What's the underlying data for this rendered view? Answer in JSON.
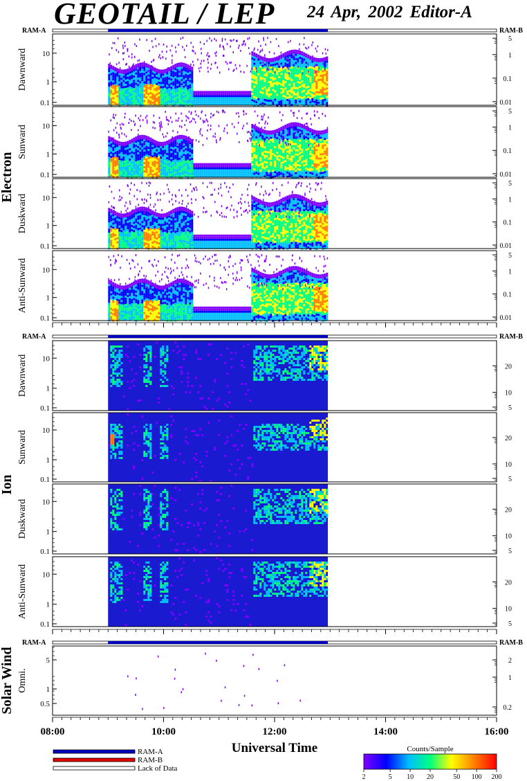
{
  "header": {
    "title": "GEOTAIL / LEP",
    "date": "24 Apr, 2002",
    "editor": "Editor-A"
  },
  "colors": {
    "ram_a": "#0000c0",
    "ram_b": "#e00000",
    "lack_of_data": "#ffffff",
    "colorscale": [
      "#7f00ff",
      "#0000ff",
      "#00bfff",
      "#00ff80",
      "#ffff00",
      "#ff8000",
      "#ff0000"
    ]
  },
  "chart_data": {
    "type": "heatmap",
    "xlabel": "Universal Time",
    "x_ticks": [
      "08:00",
      "10:00",
      "12:00",
      "14:00",
      "16:00"
    ],
    "x_range_hours": [
      8,
      16
    ],
    "data_coverage_hours": [
      9.0,
      12.96
    ],
    "mode_bar_label_left": "RAM-A",
    "mode_bar_label_right": "RAM-B",
    "groups": [
      {
        "name": "Electron",
        "left_ticks": [
          "10",
          "1",
          "0.1"
        ],
        "right_ticks": [
          "5",
          "1",
          "0.1",
          "0.01"
        ],
        "panels": [
          {
            "label": "Dawnward"
          },
          {
            "label": "Sunward"
          },
          {
            "label": "Duskward"
          },
          {
            "label": "Anti-Sunward"
          }
        ]
      },
      {
        "name": "Ion",
        "left_ticks": [
          "10",
          "1",
          "0.1"
        ],
        "right_ticks": [
          "20",
          "10",
          "5"
        ],
        "panels": [
          {
            "label": "Dawnward"
          },
          {
            "label": "Sunward"
          },
          {
            "label": "Duskward"
          },
          {
            "label": "Anti-Sunward"
          }
        ]
      },
      {
        "name": "Solar Wind",
        "left_ticks": [
          "5",
          "1",
          "0.5"
        ],
        "right_ticks": [
          "2",
          "1",
          "0.2"
        ],
        "panels": [
          {
            "label": "Omni."
          }
        ]
      }
    ],
    "colorbar": {
      "label": "Counts/Sample",
      "ticks": [
        "2",
        "5",
        "10",
        "20",
        "50",
        "100",
        "200"
      ]
    }
  },
  "legend": {
    "items": [
      {
        "label": "RAM-A"
      },
      {
        "label": "RAM-B"
      },
      {
        "label": "Lack of Data"
      }
    ]
  }
}
